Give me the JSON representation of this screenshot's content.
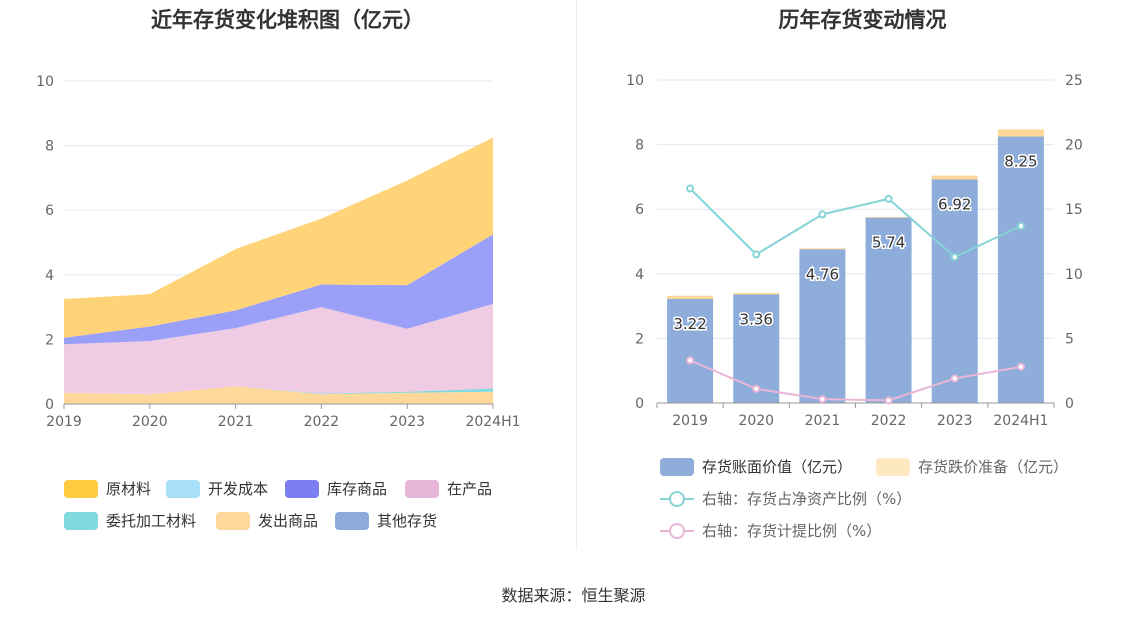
{
  "source": "数据来源：恒生聚源",
  "chart_data": [
    {
      "type": "area",
      "title": "近年存货变化堆积图（亿元）",
      "categories": [
        "2019",
        "2020",
        "2021",
        "2022",
        "2023",
        "2024H1"
      ],
      "ylim": [
        0,
        10
      ],
      "yticks": [
        "0",
        "2",
        "4",
        "6",
        "8",
        "10"
      ],
      "grid": true,
      "legend_position": "bottom",
      "series": [
        {
          "name": "发出商品",
          "color": "#fdd89a",
          "values": [
            0.35,
            0.3,
            0.55,
            0.3,
            0.35,
            0.38
          ]
        },
        {
          "name": "委托加工材料",
          "color": "#7fd9de",
          "values": [
            0,
            0,
            0,
            0.02,
            0.03,
            0.1
          ]
        },
        {
          "name": "开发成本",
          "color": "#a8e1f7",
          "values": [
            0,
            0,
            0,
            0,
            0,
            0
          ]
        },
        {
          "name": "在产品",
          "color": "#efcbe4",
          "values": [
            1.5,
            1.65,
            1.8,
            2.68,
            1.95,
            2.62
          ]
        },
        {
          "name": "库存商品",
          "color": "#9aa0f8",
          "values": [
            0.2,
            0.45,
            0.55,
            0.7,
            1.35,
            2.15
          ]
        },
        {
          "name": "其他存货",
          "color": "#8eaadb",
          "values": [
            0,
            0,
            0,
            0,
            0,
            0
          ]
        },
        {
          "name": "原材料",
          "color": "#ffd479",
          "values": [
            1.2,
            1.0,
            1.9,
            2.04,
            3.24,
            3.0
          ]
        }
      ],
      "legend": [
        {
          "name": "原材料",
          "color": "#ffc940"
        },
        {
          "name": "开发成本",
          "color": "#a8e1f7"
        },
        {
          "name": "库存商品",
          "color": "#7b7ff2"
        },
        {
          "name": "在产品",
          "color": "#e8b6d8"
        },
        {
          "name": "委托加工材料",
          "color": "#7fd9de"
        },
        {
          "name": "发出商品",
          "color": "#fdd89a"
        },
        {
          "name": "其他存货",
          "color": "#8eaadb"
        }
      ]
    },
    {
      "type": "bar",
      "title": "历年存货变动情况",
      "categories": [
        "2019",
        "2020",
        "2021",
        "2022",
        "2023",
        "2024H1"
      ],
      "ylim": [
        0,
        10
      ],
      "yticks": [
        "0",
        "2",
        "4",
        "6",
        "8",
        "10"
      ],
      "y2lim": [
        0,
        25
      ],
      "y2ticks": [
        "0",
        "5",
        "10",
        "15",
        "20",
        "25"
      ],
      "grid": true,
      "legend_position": "bottom",
      "bars": [
        {
          "name": "存货账面价值（亿元）",
          "color": "#8eaddb",
          "values": [
            3.22,
            3.36,
            4.76,
            5.74,
            6.92,
            8.25
          ],
          "labels": [
            "3.22",
            "3.36",
            "4.76",
            "5.74",
            "6.92",
            "8.25"
          ]
        },
        {
          "name": "存货跌价准备（亿元）",
          "color": "#fdd89a",
          "values": [
            0.1,
            0.05,
            0.03,
            0.02,
            0.12,
            0.22
          ]
        }
      ],
      "lines": [
        {
          "name": "右轴：存货占净资产比例（%）",
          "color": "#86d3d6",
          "axis": "right",
          "values": [
            16.6,
            11.5,
            14.6,
            15.8,
            11.3,
            13.7
          ]
        },
        {
          "name": "右轴：存货计提比例（%）",
          "color": "#eab6d6",
          "axis": "right",
          "values": [
            3.3,
            1.1,
            0.3,
            0.2,
            1.9,
            2.8
          ]
        }
      ]
    }
  ]
}
